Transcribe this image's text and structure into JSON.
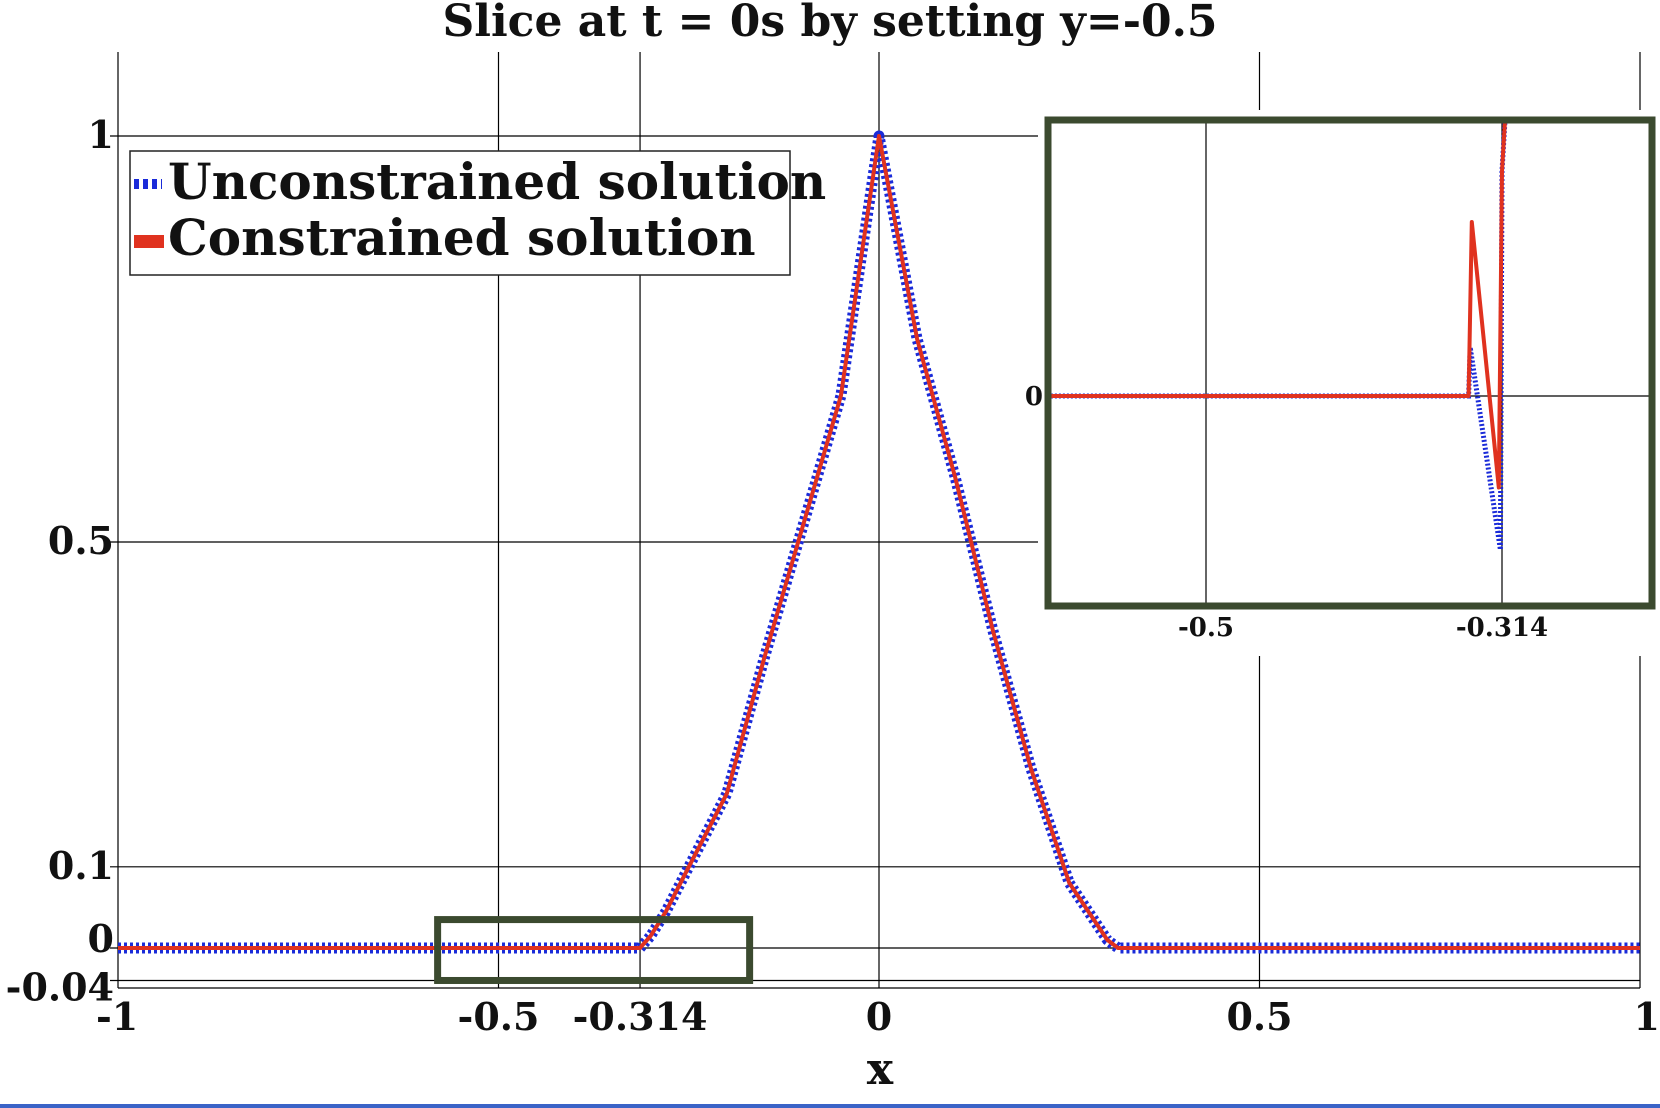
{
  "chart_data": {
    "type": "line",
    "title": "Slice at t = 0s by setting y=-0.5",
    "xlabel": "x",
    "ylabel": "",
    "xlim": [
      -1,
      1
    ],
    "ylim": [
      -0.04,
      1.1
    ],
    "xticks": [
      "-1",
      "-0.5",
      "-0.314",
      "0",
      "0.5",
      "1"
    ],
    "xtick_values": [
      -1,
      -0.5,
      -0.314,
      0,
      0.5,
      1
    ],
    "yticks": [
      "1",
      "0.5",
      "0.1",
      "0",
      "-0.04"
    ],
    "ytick_values": [
      1,
      0.5,
      0.1,
      0,
      -0.04
    ],
    "grid": true,
    "legend_position": "top-left",
    "series": [
      {
        "name": "Unconstrained solution",
        "color": "#1a2bd9",
        "style": "dotted",
        "x": [
          -1,
          -0.314,
          -0.3,
          -0.28,
          -0.25,
          -0.2,
          -0.15,
          -0.1,
          -0.05,
          0,
          0.05,
          0.1,
          0.15,
          0.2,
          0.25,
          0.3,
          0.314,
          1
        ],
        "y": [
          0,
          0,
          0.015,
          0.045,
          0.1,
          0.19,
          0.36,
          0.52,
          0.68,
          1,
          0.75,
          0.58,
          0.39,
          0.22,
          0.08,
          0.01,
          0,
          0
        ]
      },
      {
        "name": "Constrained solution",
        "color": "#e0321f",
        "style": "solid",
        "x": [
          -1,
          -0.314,
          -0.3,
          -0.28,
          -0.25,
          -0.2,
          -0.15,
          -0.1,
          -0.05,
          0,
          0.05,
          0.1,
          0.15,
          0.2,
          0.25,
          0.3,
          0.314,
          1
        ],
        "y": [
          0,
          0,
          0.015,
          0.045,
          0.1,
          0.19,
          0.36,
          0.52,
          0.68,
          1,
          0.75,
          0.58,
          0.39,
          0.22,
          0.08,
          0.01,
          0,
          0
        ]
      }
    ],
    "inset": {
      "xticks": [
        "-0.5",
        "-0.314"
      ],
      "xtick_values": [
        -0.5,
        -0.314
      ],
      "yticks": [
        "0"
      ],
      "ytick_values": [
        0
      ],
      "zoom_region": {
        "x": [
          -0.58,
          -0.17
        ],
        "y": [
          -0.04,
          0.035
        ]
      },
      "series": [
        {
          "name": "Unconstrained solution",
          "x": [
            -0.6,
            -0.335,
            -0.334,
            -0.315,
            -0.314,
            -0.3
          ],
          "y": [
            0,
            0,
            0.0065,
            -0.0205,
            0.03,
            0.08
          ]
        },
        {
          "name": "Constrained solution",
          "x": [
            -0.6,
            -0.335,
            -0.333,
            -0.316,
            -0.314,
            -0.3
          ],
          "y": [
            0,
            0,
            0.0232,
            -0.0122,
            0.03,
            0.08
          ]
        }
      ]
    }
  }
}
